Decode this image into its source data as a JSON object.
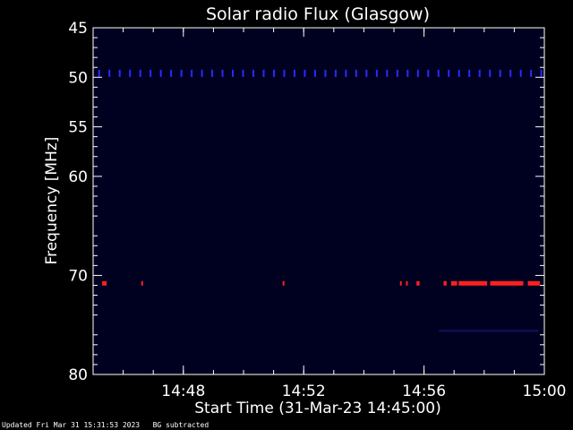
{
  "chart_data": {
    "type": "heatmap",
    "title": "Solar radio Flux (Glasgow)",
    "xlabel": "Start Time (31-Mar-23 14:45:00)",
    "ylabel": "Frequency [MHz]",
    "x_unit": "minutes after 14:45:00",
    "xlim": [
      0,
      15
    ],
    "ylim": [
      45,
      80
    ],
    "y_reversed": true,
    "x_ticks": [
      {
        "value": 3,
        "label": "14:48"
      },
      {
        "value": 7,
        "label": "14:52"
      },
      {
        "value": 11,
        "label": "14:56"
      },
      {
        "value": 15,
        "label": "15:00"
      }
    ],
    "y_ticks": [
      {
        "value": 45,
        "label": "45"
      },
      {
        "value": 50,
        "label": "50"
      },
      {
        "value": 55,
        "label": "55"
      },
      {
        "value": 60,
        "label": "60"
      },
      {
        "value": 70,
        "label": "70"
      },
      {
        "value": 80,
        "label": "80"
      }
    ],
    "background_color": "#000020",
    "bands": [
      {
        "freq_mhz": 49.6,
        "color": "#2a2aff",
        "t_start": 0.2,
        "t_end": 14.9,
        "pattern": "dashed"
      },
      {
        "freq_mhz": 70.8,
        "color": "#ff2020",
        "segments": [
          [
            0.3,
            0.45
          ],
          [
            1.6,
            1.65
          ],
          [
            6.3,
            6.35
          ],
          [
            10.2,
            10.25
          ],
          [
            10.4,
            10.45
          ],
          [
            10.75,
            10.85
          ],
          [
            11.65,
            11.75
          ],
          [
            11.9,
            12.1
          ],
          [
            12.15,
            13.1
          ],
          [
            13.2,
            14.3
          ],
          [
            14.45,
            14.85
          ]
        ]
      },
      {
        "freq_mhz": 75.6,
        "color": "#101060",
        "t_start": 11.5,
        "t_end": 14.8,
        "pattern": "solid"
      }
    ],
    "colors": {
      "axis": "#ffffff",
      "background": "#000000"
    }
  },
  "footer": {
    "updated": "Updated Fri Mar 31 15:31:53 2023",
    "note": "BG subtracted"
  }
}
